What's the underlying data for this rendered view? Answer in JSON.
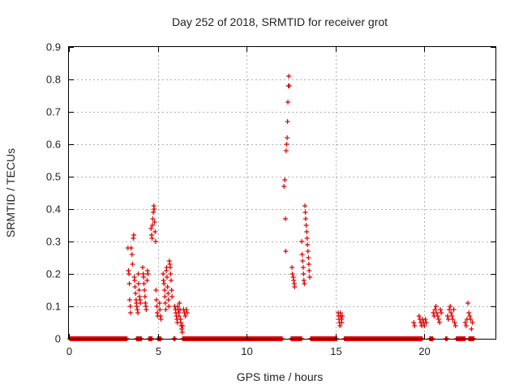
{
  "chart_data": {
    "type": "scatter",
    "title": "Day 252 of 2018, SRMTID for receiver grot",
    "xlabel": "GPS time / hours",
    "ylabel": "SRMTID / TECUs",
    "xlim": [
      0,
      24
    ],
    "ylim": [
      0,
      0.9
    ],
    "xticks": [
      0,
      5,
      10,
      15,
      20
    ],
    "xtick_labels": [
      "0",
      "5",
      "10",
      "15",
      "20"
    ],
    "yticks": [
      0,
      0.1,
      0.2,
      0.3,
      0.4,
      0.5,
      0.6,
      0.7,
      0.8,
      0.9
    ],
    "ytick_labels": [
      "0",
      "0.1",
      "0.2",
      "0.3",
      "0.4",
      "0.5",
      "0.6",
      "0.7",
      "0.8",
      "0.9"
    ],
    "grid": true,
    "marker": "+",
    "color": "#e00000",
    "series": [
      {
        "name": "SRMTID",
        "baseline_zero_intervals": [
          [
            0.05,
            3.3
          ],
          [
            3.8,
            4.1
          ],
          [
            4.5,
            4.7
          ],
          [
            5.0,
            5.2
          ],
          [
            5.9,
            6.0
          ],
          [
            6.4,
            12.0
          ],
          [
            12.5,
            13.1
          ],
          [
            13.6,
            15.1
          ],
          [
            15.5,
            19.9
          ],
          [
            20.3,
            20.5
          ],
          [
            21.2,
            21.3
          ],
          [
            21.8,
            22.3
          ],
          [
            22.5,
            22.8
          ]
        ],
        "points": [
          [
            3.32,
            0.28
          ],
          [
            3.35,
            0.21
          ],
          [
            3.38,
            0.2
          ],
          [
            3.4,
            0.17
          ],
          [
            3.42,
            0.12
          ],
          [
            3.45,
            0.1
          ],
          [
            3.47,
            0.08
          ],
          [
            3.5,
            0.28
          ],
          [
            3.55,
            0.26
          ],
          [
            3.58,
            0.23
          ],
          [
            3.62,
            0.31
          ],
          [
            3.65,
            0.32
          ],
          [
            3.68,
            0.19
          ],
          [
            3.7,
            0.18
          ],
          [
            3.72,
            0.16
          ],
          [
            3.75,
            0.14
          ],
          [
            3.78,
            0.12
          ],
          [
            3.8,
            0.11
          ],
          [
            3.82,
            0.1
          ],
          [
            3.85,
            0.09
          ],
          [
            3.88,
            0.08
          ],
          [
            3.9,
            0.2
          ],
          [
            3.92,
            0.17
          ],
          [
            3.95,
            0.15
          ],
          [
            3.97,
            0.13
          ],
          [
            4.0,
            0.12
          ],
          [
            4.02,
            0.11
          ],
          [
            4.15,
            0.22
          ],
          [
            4.18,
            0.2
          ],
          [
            4.2,
            0.19
          ],
          [
            4.22,
            0.17
          ],
          [
            4.25,
            0.15
          ],
          [
            4.28,
            0.13
          ],
          [
            4.3,
            0.11
          ],
          [
            4.33,
            0.1
          ],
          [
            4.35,
            0.09
          ],
          [
            4.4,
            0.18
          ],
          [
            4.42,
            0.21
          ],
          [
            4.45,
            0.2
          ],
          [
            4.62,
            0.34
          ],
          [
            4.65,
            0.32
          ],
          [
            4.68,
            0.31
          ],
          [
            4.7,
            0.35
          ],
          [
            4.72,
            0.37
          ],
          [
            4.75,
            0.39
          ],
          [
            4.78,
            0.41
          ],
          [
            4.8,
            0.4
          ],
          [
            4.82,
            0.36
          ],
          [
            4.85,
            0.33
          ],
          [
            4.88,
            0.3
          ],
          [
            4.9,
            0.15
          ],
          [
            4.92,
            0.12
          ],
          [
            4.95,
            0.1
          ],
          [
            4.97,
            0.08
          ],
          [
            5.0,
            0.07
          ],
          [
            5.1,
            0.11
          ],
          [
            5.12,
            0.09
          ],
          [
            5.15,
            0.07
          ],
          [
            5.18,
            0.06
          ],
          [
            5.3,
            0.2
          ],
          [
            5.32,
            0.18
          ],
          [
            5.35,
            0.17
          ],
          [
            5.38,
            0.15
          ],
          [
            5.4,
            0.13
          ],
          [
            5.42,
            0.11
          ],
          [
            5.45,
            0.09
          ],
          [
            5.48,
            0.21
          ],
          [
            5.5,
            0.22
          ],
          [
            5.52,
            0.19
          ],
          [
            5.55,
            0.16
          ],
          [
            5.58,
            0.14
          ],
          [
            5.6,
            0.12
          ],
          [
            5.62,
            0.1
          ],
          [
            5.65,
            0.24
          ],
          [
            5.68,
            0.23
          ],
          [
            5.7,
            0.22
          ],
          [
            5.72,
            0.2
          ],
          [
            5.75,
            0.18
          ],
          [
            5.78,
            0.15
          ],
          [
            5.8,
            0.13
          ],
          [
            5.95,
            0.1
          ],
          [
            6.0,
            0.09
          ],
          [
            6.02,
            0.08
          ],
          [
            6.05,
            0.07
          ],
          [
            6.08,
            0.06
          ],
          [
            6.1,
            0.05
          ],
          [
            6.12,
            0.1
          ],
          [
            6.15,
            0.09
          ],
          [
            6.18,
            0.08
          ],
          [
            6.2,
            0.07
          ],
          [
            6.22,
            0.11
          ],
          [
            6.25,
            0.09
          ],
          [
            6.28,
            0.06
          ],
          [
            6.3,
            0.05
          ],
          [
            6.32,
            0.04
          ],
          [
            6.35,
            0.03
          ],
          [
            6.38,
            0.02
          ],
          [
            6.4,
            0.04
          ],
          [
            6.45,
            0.09
          ],
          [
            6.5,
            0.08
          ],
          [
            6.55,
            0.07
          ],
          [
            6.6,
            0.09
          ],
          [
            6.65,
            0.08
          ],
          [
            12.1,
            0.47
          ],
          [
            12.15,
            0.49
          ],
          [
            12.18,
            0.37
          ],
          [
            12.2,
            0.27
          ],
          [
            12.22,
            0.58
          ],
          [
            12.25,
            0.6
          ],
          [
            12.28,
            0.62
          ],
          [
            12.3,
            0.67
          ],
          [
            12.32,
            0.73
          ],
          [
            12.35,
            0.78
          ],
          [
            12.37,
            0.81
          ],
          [
            12.4,
            0.78
          ],
          [
            12.55,
            0.22
          ],
          [
            12.58,
            0.2
          ],
          [
            12.62,
            0.19
          ],
          [
            12.65,
            0.18
          ],
          [
            12.68,
            0.17
          ],
          [
            12.7,
            0.16
          ],
          [
            13.1,
            0.3
          ],
          [
            13.12,
            0.26
          ],
          [
            13.15,
            0.24
          ],
          [
            13.18,
            0.22
          ],
          [
            13.2,
            0.2
          ],
          [
            13.22,
            0.18
          ],
          [
            13.25,
            0.17
          ],
          [
            13.28,
            0.41
          ],
          [
            13.3,
            0.39
          ],
          [
            13.32,
            0.37
          ],
          [
            13.35,
            0.35
          ],
          [
            13.38,
            0.33
          ],
          [
            13.4,
            0.31
          ],
          [
            13.42,
            0.29
          ],
          [
            13.45,
            0.27
          ],
          [
            13.48,
            0.25
          ],
          [
            13.5,
            0.23
          ],
          [
            13.52,
            0.21
          ],
          [
            13.55,
            0.19
          ],
          [
            15.15,
            0.08
          ],
          [
            15.18,
            0.07
          ],
          [
            15.2,
            0.06
          ],
          [
            15.22,
            0.05
          ],
          [
            15.25,
            0.04
          ],
          [
            15.28,
            0.08
          ],
          [
            15.3,
            0.07
          ],
          [
            15.33,
            0.06
          ],
          [
            15.35,
            0.05
          ],
          [
            15.38,
            0.07
          ],
          [
            19.4,
            0.05
          ],
          [
            19.45,
            0.04
          ],
          [
            19.7,
            0.07
          ],
          [
            19.75,
            0.06
          ],
          [
            19.8,
            0.05
          ],
          [
            19.85,
            0.04
          ],
          [
            19.9,
            0.06
          ],
          [
            19.95,
            0.05
          ],
          [
            20.0,
            0.04
          ],
          [
            20.05,
            0.06
          ],
          [
            20.1,
            0.05
          ],
          [
            20.5,
            0.08
          ],
          [
            20.55,
            0.07
          ],
          [
            20.6,
            0.09
          ],
          [
            20.65,
            0.1
          ],
          [
            20.7,
            0.08
          ],
          [
            20.75,
            0.07
          ],
          [
            20.8,
            0.06
          ],
          [
            20.85,
            0.05
          ],
          [
            20.9,
            0.09
          ],
          [
            20.95,
            0.08
          ],
          [
            21.3,
            0.07
          ],
          [
            21.35,
            0.06
          ],
          [
            21.4,
            0.09
          ],
          [
            21.45,
            0.1
          ],
          [
            21.5,
            0.08
          ],
          [
            21.55,
            0.07
          ],
          [
            21.6,
            0.06
          ],
          [
            21.65,
            0.09
          ],
          [
            21.7,
            0.05
          ],
          [
            21.75,
            0.04
          ],
          [
            22.3,
            0.05
          ],
          [
            22.35,
            0.04
          ],
          [
            22.4,
            0.06
          ],
          [
            22.45,
            0.11
          ],
          [
            22.5,
            0.08
          ],
          [
            22.55,
            0.07
          ],
          [
            22.6,
            0.06
          ],
          [
            22.65,
            0.03
          ],
          [
            22.7,
            0.05
          ]
        ]
      }
    ]
  }
}
